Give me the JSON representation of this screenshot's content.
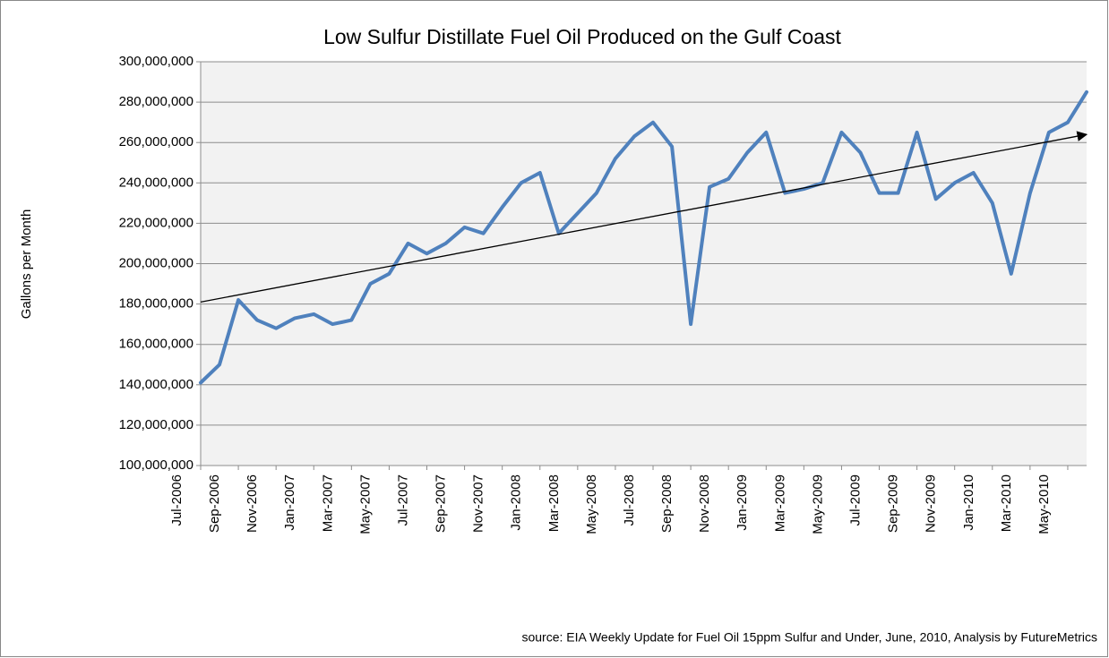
{
  "chart_data": {
    "type": "line",
    "title": "Low Sulfur Distillate Fuel Oil Produced on the Gulf Coast",
    "y_label": "Gallons per Month",
    "source": "source: EIA Weekly Update for Fuel Oil 15ppm Sulfur and Under, June, 2010, Analysis by FutureMetrics",
    "categories": [
      "Jul-2006",
      null,
      "Sep-2006",
      null,
      "Nov-2006",
      null,
      "Jan-2007",
      null,
      "Mar-2007",
      null,
      "May-2007",
      null,
      "Jul-2007",
      null,
      "Sep-2007",
      null,
      "Nov-2007",
      null,
      "Jan-2008",
      null,
      "Mar-2008",
      null,
      "May-2008",
      null,
      "Jul-2008",
      null,
      "Sep-2008",
      null,
      "Nov-2008",
      null,
      "Jan-2009",
      null,
      "Mar-2009",
      null,
      "May-2009",
      null,
      "Jul-2009",
      null,
      "Sep-2009",
      null,
      "Nov-2009",
      null,
      "Jan-2010",
      null,
      "Mar-2010",
      null,
      "May-2010",
      null
    ],
    "series": [
      {
        "name": "Gallons per Month",
        "color": "#4f81bd",
        "values": [
          141000000,
          150000000,
          182000000,
          172000000,
          168000000,
          173000000,
          175000000,
          170000000,
          172000000,
          190000000,
          195000000,
          210000000,
          205000000,
          210000000,
          218000000,
          215000000,
          228000000,
          240000000,
          245000000,
          215000000,
          225000000,
          235000000,
          252000000,
          263000000,
          270000000,
          258000000,
          170000000,
          238000000,
          242000000,
          255000000,
          265000000,
          235000000,
          237000000,
          240000000,
          265000000,
          255000000,
          235000000,
          235000000,
          265000000,
          232000000,
          240000000,
          245000000,
          230000000,
          195000000,
          235000000,
          265000000,
          270000000,
          285000000
        ]
      }
    ],
    "trendline": {
      "color": "#000000",
      "values": [
        181000000,
        264000000
      ]
    },
    "ylim": [
      100000000,
      300000000
    ],
    "yticks": [
      {
        "value": 100000000,
        "label": "100,000,000"
      },
      {
        "value": 120000000,
        "label": "120,000,000"
      },
      {
        "value": 140000000,
        "label": "140,000,000"
      },
      {
        "value": 160000000,
        "label": "160,000,000"
      },
      {
        "value": 180000000,
        "label": "180,000,000"
      },
      {
        "value": 200000000,
        "label": "200,000,000"
      },
      {
        "value": 220000000,
        "label": "220,000,000"
      },
      {
        "value": 240000000,
        "label": "240,000,000"
      },
      {
        "value": 260000000,
        "label": "260,000,000"
      },
      {
        "value": 280000000,
        "label": "280,000,000"
      },
      {
        "value": 300000000,
        "label": "300,000,000"
      }
    ],
    "grid": true
  }
}
